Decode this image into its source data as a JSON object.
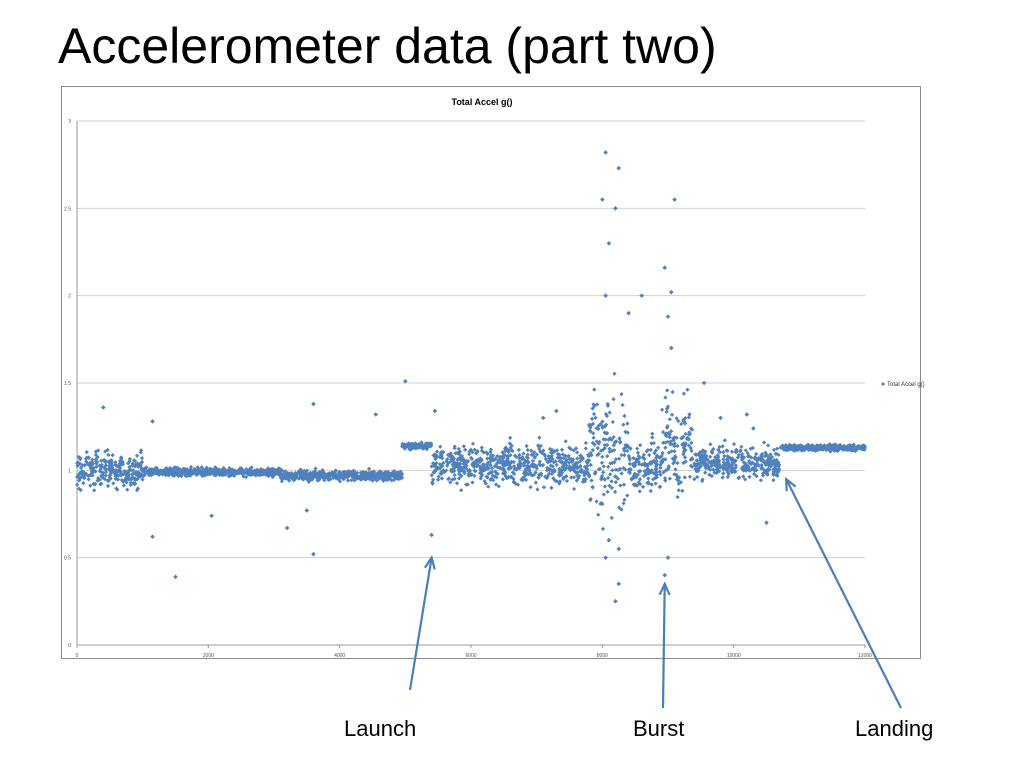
{
  "slide": {
    "title": "Accelerometer data (part two)"
  },
  "chart_data": {
    "type": "scatter",
    "title": "Total Accel g()",
    "xlabel": "",
    "ylabel": "",
    "xlim": [
      0,
      12000
    ],
    "ylim": [
      0,
      3
    ],
    "x_ticks": [
      0,
      2000,
      4000,
      6000,
      8000,
      10000,
      12000
    ],
    "y_ticks": [
      0,
      0.5,
      1,
      1.5,
      2,
      2.5,
      3
    ],
    "grid": "horizontal",
    "legend_placement": "right",
    "series": [
      {
        "name": "Total Accel g()",
        "color": "#4f81bd",
        "marker": "diamond",
        "profile": [
          {
            "x_start": 0,
            "x_end": 1000,
            "center": 1.0,
            "spread": 0.09
          },
          {
            "x_start": 1000,
            "x_end": 3100,
            "center": 0.99,
            "spread": 0.02
          },
          {
            "x_start": 3100,
            "x_end": 4950,
            "center": 0.97,
            "spread": 0.025
          },
          {
            "x_start": 4950,
            "x_end": 5400,
            "center": 1.14,
            "spread": 0.015
          },
          {
            "x_start": 5400,
            "x_end": 7800,
            "center": 1.03,
            "spread": 0.1
          },
          {
            "x_start": 7800,
            "x_end": 8400,
            "center": 1.1,
            "spread": 0.3
          },
          {
            "x_start": 8400,
            "x_end": 8900,
            "center": 1.02,
            "spread": 0.12
          },
          {
            "x_start": 8900,
            "x_end": 9400,
            "center": 1.15,
            "spread": 0.25
          },
          {
            "x_start": 9400,
            "x_end": 10700,
            "center": 1.04,
            "spread": 0.08
          },
          {
            "x_start": 10700,
            "x_end": 12000,
            "center": 1.13,
            "spread": 0.015
          }
        ],
        "points": [
          [
            400,
            1.36
          ],
          [
            1150,
            0.62
          ],
          [
            1500,
            0.39
          ],
          [
            1150,
            1.28
          ],
          [
            2050,
            0.74
          ],
          [
            3600,
            1.38
          ],
          [
            3600,
            0.52
          ],
          [
            3200,
            0.67
          ],
          [
            3500,
            0.77
          ],
          [
            4550,
            1.32
          ],
          [
            5000,
            1.51
          ],
          [
            5400,
            0.63
          ],
          [
            5450,
            1.34
          ],
          [
            7100,
            1.3
          ],
          [
            7300,
            1.34
          ],
          [
            8050,
            2.82
          ],
          [
            8250,
            2.73
          ],
          [
            8000,
            2.55
          ],
          [
            8200,
            2.5
          ],
          [
            8100,
            2.3
          ],
          [
            8050,
            2.0
          ],
          [
            8400,
            1.9
          ],
          [
            8200,
            0.25
          ],
          [
            8250,
            0.55
          ],
          [
            8050,
            0.5
          ],
          [
            8100,
            0.6
          ],
          [
            8250,
            0.35
          ],
          [
            8600,
            2.0
          ],
          [
            9100,
            2.55
          ],
          [
            8950,
            2.16
          ],
          [
            9050,
            2.02
          ],
          [
            9000,
            1.88
          ],
          [
            9050,
            1.7
          ],
          [
            8950,
            0.4
          ],
          [
            9000,
            0.5
          ],
          [
            9550,
            1.5
          ],
          [
            10200,
            1.32
          ],
          [
            10500,
            0.7
          ],
          [
            10300,
            1.24
          ],
          [
            9800,
            1.3
          ]
        ]
      }
    ]
  },
  "annotations": [
    {
      "label": "Launch",
      "target_x": 5400,
      "target_y": 0.5
    },
    {
      "label": "Burst",
      "target_x": 8950,
      "target_y": 0.35
    },
    {
      "label": "Landing",
      "target_x": 10800,
      "target_y": 0.95
    }
  ]
}
